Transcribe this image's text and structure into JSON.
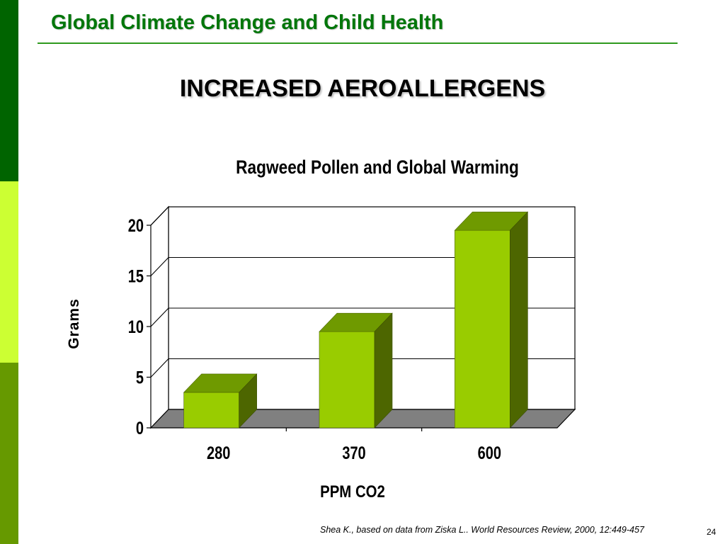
{
  "slide": {
    "header": "Global Climate Change and Child Health",
    "heading": "INCREASED AEROALLERGENS",
    "footnote": "Shea K., based on data from Ziska L.. World Resources Review, 2000, 12:449-457",
    "page_number": "24"
  },
  "colors": {
    "header_text": "#00760a",
    "header_rule": "#2f9a1e",
    "sidebar_top": "#006400",
    "sidebar_middle": "#ccff33",
    "sidebar_bottom": "#669900",
    "bar_front": "#99cc00",
    "bar_top": "#6f9a00",
    "bar_side": "#4d6600",
    "floor": "#808080"
  },
  "chart_data": {
    "type": "bar",
    "title": "Ragweed Pollen and Global Warming",
    "xlabel": "PPM CO2",
    "ylabel": "Grams",
    "categories": [
      "280",
      "370",
      "600"
    ],
    "values": [
      3.5,
      9.5,
      19.5
    ],
    "ylim": [
      0,
      20
    ],
    "yticks": [
      "0",
      "5",
      "10",
      "15",
      "20"
    ],
    "grid": true,
    "legend": "none",
    "style": "3d"
  }
}
